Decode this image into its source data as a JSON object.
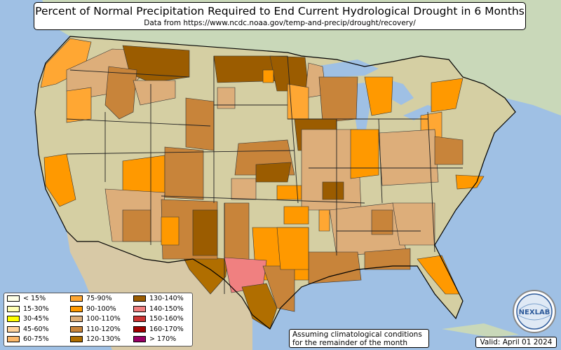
{
  "header": {
    "title": "Percent of Normal Precipitation Required to End Current Hydrological Drought in 6 Months",
    "subtitle": "Data from https://www.ncdc.noaa.gov/temp-and-precip/drought/recovery/"
  },
  "legend": {
    "items": [
      {
        "label": "< 15%",
        "color": "#ffffe6"
      },
      {
        "label": "15-30%",
        "color": "#ffffb3"
      },
      {
        "label": "30-45%",
        "color": "#ffff00"
      },
      {
        "label": "45-60%",
        "color": "#ffd39b"
      },
      {
        "label": "60-75%",
        "color": "#fbb86a"
      },
      {
        "label": "75-90%",
        "color": "#ffa733"
      },
      {
        "label": "90-100%",
        "color": "#ff9900"
      },
      {
        "label": "100-110%",
        "color": "#ddae7a"
      },
      {
        "label": "110-120%",
        "color": "#c8843a"
      },
      {
        "label": "120-130%",
        "color": "#b06e00"
      },
      {
        "label": "130-140%",
        "color": "#9b5c00"
      },
      {
        "label": "140-150%",
        "color": "#f08080"
      },
      {
        "label": "150-160%",
        "color": "#cc3333"
      },
      {
        "label": "160-170%",
        "color": "#a00000"
      },
      {
        "label": "> 170%",
        "color": "#990066"
      }
    ]
  },
  "note": {
    "line1": "Assuming climatological conditions",
    "line2": "for the remainder of the month"
  },
  "valid": "Valid: April 01 2024",
  "logo": {
    "text": "NEXLAB"
  }
}
